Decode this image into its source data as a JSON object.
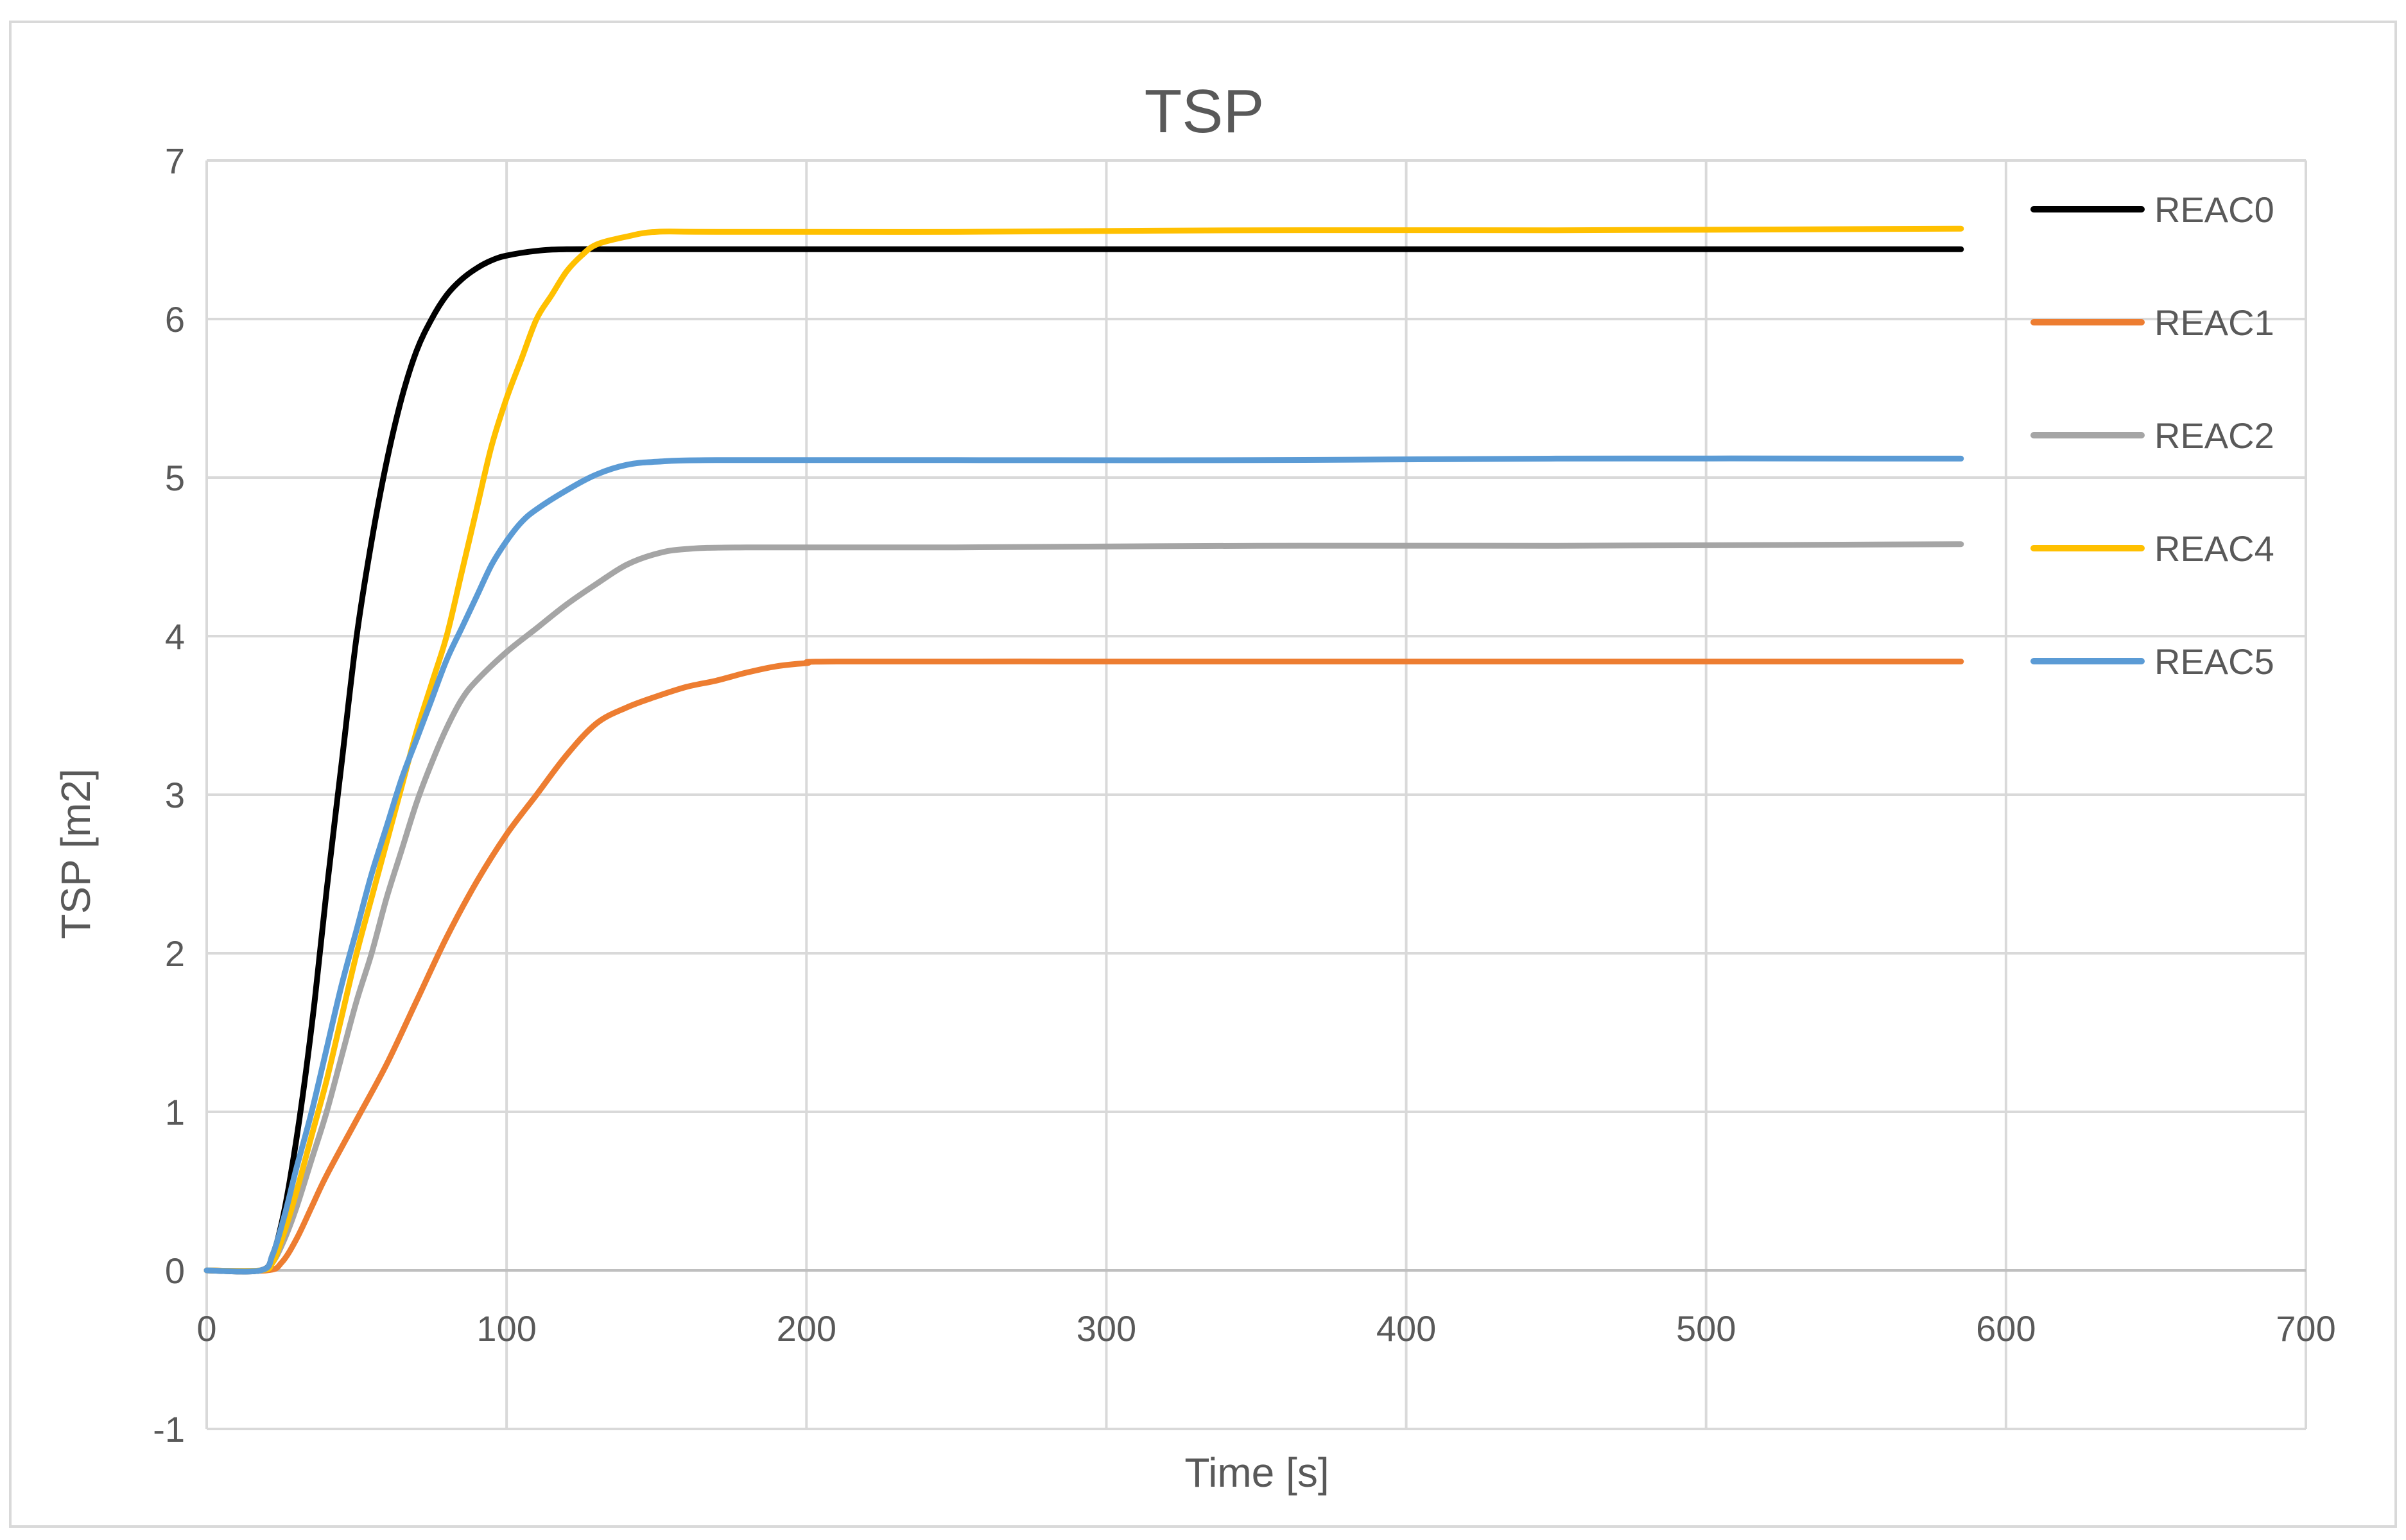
{
  "chart_data": {
    "type": "line",
    "title": "TSP",
    "xlabel": "Time [s]",
    "ylabel": "TSP [m2]",
    "xlim": [
      0,
      700
    ],
    "ylim": [
      -1,
      7
    ],
    "xticks": [
      0,
      100,
      200,
      300,
      400,
      500,
      600,
      700
    ],
    "yticks": [
      -1,
      0,
      1,
      2,
      3,
      4,
      5,
      6,
      7
    ],
    "grid": true,
    "legend_position": "right",
    "series": [
      {
        "name": "REAC0",
        "color": "#000000",
        "points": [
          [
            0,
            0
          ],
          [
            18,
            0
          ],
          [
            22,
            0.1
          ],
          [
            25,
            0.3
          ],
          [
            28,
            0.6
          ],
          [
            32,
            1.1
          ],
          [
            36,
            1.7
          ],
          [
            40,
            2.4
          ],
          [
            45,
            3.2
          ],
          [
            50,
            4.0
          ],
          [
            55,
            4.6
          ],
          [
            60,
            5.1
          ],
          [
            65,
            5.5
          ],
          [
            70,
            5.8
          ],
          [
            75,
            6.0
          ],
          [
            80,
            6.15
          ],
          [
            85,
            6.25
          ],
          [
            90,
            6.32
          ],
          [
            95,
            6.37
          ],
          [
            100,
            6.4
          ],
          [
            110,
            6.43
          ],
          [
            120,
            6.44
          ],
          [
            140,
            6.44
          ],
          [
            200,
            6.44
          ],
          [
            300,
            6.44
          ],
          [
            400,
            6.44
          ],
          [
            500,
            6.44
          ],
          [
            585,
            6.44
          ]
        ]
      },
      {
        "name": "REAC1",
        "color": "#ED7D31",
        "points": [
          [
            0,
            0
          ],
          [
            20,
            0
          ],
          [
            25,
            0.05
          ],
          [
            30,
            0.2
          ],
          [
            35,
            0.4
          ],
          [
            40,
            0.6
          ],
          [
            50,
            0.95
          ],
          [
            60,
            1.3
          ],
          [
            70,
            1.7
          ],
          [
            80,
            2.1
          ],
          [
            90,
            2.45
          ],
          [
            100,
            2.75
          ],
          [
            110,
            3.0
          ],
          [
            120,
            3.25
          ],
          [
            130,
            3.45
          ],
          [
            140,
            3.55
          ],
          [
            150,
            3.62
          ],
          [
            160,
            3.68
          ],
          [
            170,
            3.72
          ],
          [
            180,
            3.77
          ],
          [
            190,
            3.81
          ],
          [
            200,
            3.83
          ],
          [
            210,
            3.84
          ],
          [
            300,
            3.84
          ],
          [
            400,
            3.84
          ],
          [
            500,
            3.84
          ],
          [
            585,
            3.84
          ]
        ]
      },
      {
        "name": "REAC2",
        "color": "#A5A5A5",
        "points": [
          [
            0,
            0
          ],
          [
            18,
            0
          ],
          [
            22,
            0.05
          ],
          [
            26,
            0.2
          ],
          [
            30,
            0.4
          ],
          [
            35,
            0.7
          ],
          [
            40,
            1.0
          ],
          [
            45,
            1.35
          ],
          [
            50,
            1.7
          ],
          [
            55,
            2.0
          ],
          [
            60,
            2.35
          ],
          [
            65,
            2.65
          ],
          [
            70,
            2.95
          ],
          [
            75,
            3.2
          ],
          [
            80,
            3.42
          ],
          [
            85,
            3.6
          ],
          [
            90,
            3.72
          ],
          [
            100,
            3.9
          ],
          [
            110,
            4.05
          ],
          [
            120,
            4.2
          ],
          [
            130,
            4.33
          ],
          [
            140,
            4.45
          ],
          [
            150,
            4.52
          ],
          [
            160,
            4.55
          ],
          [
            180,
            4.56
          ],
          [
            250,
            4.56
          ],
          [
            350,
            4.57
          ],
          [
            450,
            4.57
          ],
          [
            585,
            4.58
          ]
        ]
      },
      {
        "name": "REAC4",
        "color": "#FFC000",
        "points": [
          [
            0,
            0
          ],
          [
            18,
            0
          ],
          [
            22,
            0.05
          ],
          [
            26,
            0.25
          ],
          [
            30,
            0.5
          ],
          [
            35,
            0.85
          ],
          [
            40,
            1.2
          ],
          [
            45,
            1.6
          ],
          [
            50,
            2.0
          ],
          [
            55,
            2.35
          ],
          [
            60,
            2.7
          ],
          [
            65,
            3.05
          ],
          [
            70,
            3.4
          ],
          [
            75,
            3.7
          ],
          [
            80,
            4.0
          ],
          [
            85,
            4.4
          ],
          [
            90,
            4.8
          ],
          [
            95,
            5.2
          ],
          [
            100,
            5.5
          ],
          [
            105,
            5.75
          ],
          [
            110,
            6.0
          ],
          [
            115,
            6.15
          ],
          [
            120,
            6.3
          ],
          [
            125,
            6.4
          ],
          [
            130,
            6.47
          ],
          [
            140,
            6.52
          ],
          [
            150,
            6.55
          ],
          [
            170,
            6.55
          ],
          [
            250,
            6.55
          ],
          [
            350,
            6.56
          ],
          [
            450,
            6.56
          ],
          [
            585,
            6.57
          ]
        ]
      },
      {
        "name": "REAC5",
        "color": "#5B9BD5",
        "points": [
          [
            0,
            0
          ],
          [
            18,
            0
          ],
          [
            22,
            0.1
          ],
          [
            26,
            0.35
          ],
          [
            30,
            0.65
          ],
          [
            35,
            1.0
          ],
          [
            40,
            1.4
          ],
          [
            45,
            1.8
          ],
          [
            50,
            2.15
          ],
          [
            55,
            2.5
          ],
          [
            60,
            2.8
          ],
          [
            65,
            3.1
          ],
          [
            70,
            3.35
          ],
          [
            75,
            3.6
          ],
          [
            80,
            3.85
          ],
          [
            85,
            4.05
          ],
          [
            90,
            4.25
          ],
          [
            95,
            4.45
          ],
          [
            100,
            4.6
          ],
          [
            105,
            4.72
          ],
          [
            110,
            4.8
          ],
          [
            120,
            4.92
          ],
          [
            130,
            5.02
          ],
          [
            140,
            5.08
          ],
          [
            150,
            5.1
          ],
          [
            170,
            5.11
          ],
          [
            250,
            5.11
          ],
          [
            350,
            5.11
          ],
          [
            450,
            5.12
          ],
          [
            585,
            5.12
          ]
        ]
      }
    ]
  }
}
